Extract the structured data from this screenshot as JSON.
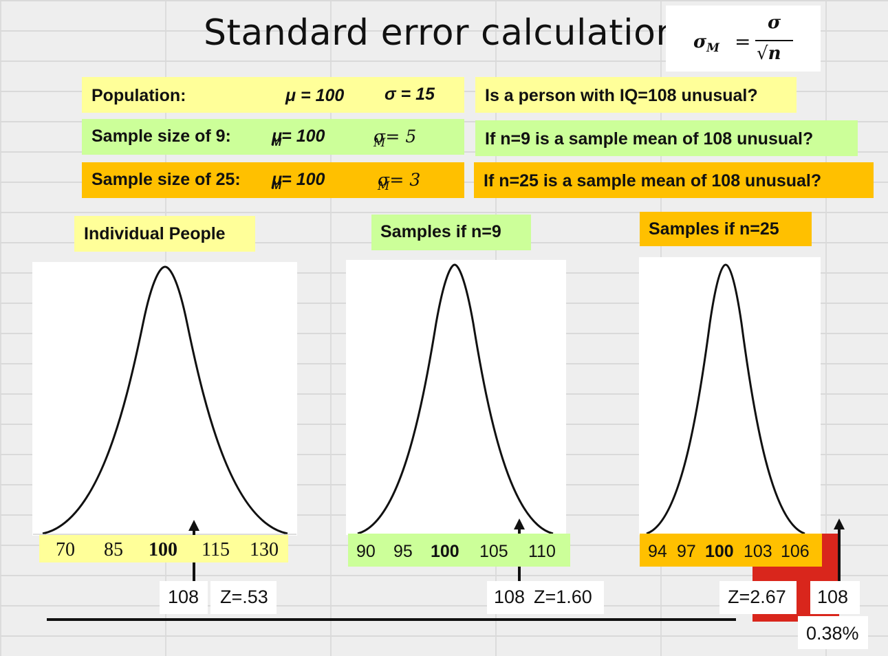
{
  "title": "Standard error calculation",
  "formula": {
    "lhs": "σ",
    "lhs_sub": "M",
    "eq": "=",
    "num": "σ",
    "den_root": "√",
    "den": "n"
  },
  "rows": [
    {
      "label": "Population:",
      "mu": "μ = 100",
      "sigma": "σ = 15",
      "question": "Is a person with IQ=108 unusual?"
    },
    {
      "label": "Sample size of 9:",
      "mu": "μ",
      "mu_sub": "M",
      "mu_val": " = 100",
      "sigma": "σ",
      "sigma_sub": "M",
      "sigma_val": " = 5",
      "question": "If n=9 is a sample mean of 108 unusual?"
    },
    {
      "label": "Sample size of 25:",
      "mu": "μ",
      "mu_sub": "M",
      "mu_val": " = 100",
      "sigma": "σ",
      "sigma_sub": "M",
      "sigma_val": " = 3",
      "question": "If n=25 is a sample mean of 108 unusual?"
    }
  ],
  "panels": [
    {
      "heading": "Individual People",
      "ticks": [
        "70",
        "85",
        "100",
        "115",
        "130"
      ],
      "value_label": "108",
      "z_label": "Z=.53"
    },
    {
      "heading": "Samples if n=9",
      "ticks": [
        "90",
        "95",
        "100",
        "105",
        "110"
      ],
      "value_label": "108",
      "z_label": "Z=1.60"
    },
    {
      "heading": "Samples if n=25",
      "ticks": [
        "94",
        "97",
        "100",
        "103",
        "106"
      ],
      "value_label": "108",
      "z_label": "Z=2.67",
      "pct_label": "0.38%"
    }
  ],
  "colors": {
    "yellow": "#ffff99",
    "green": "#ccff99",
    "orange": "#ffc000",
    "logo_red": "#d9261c"
  }
}
